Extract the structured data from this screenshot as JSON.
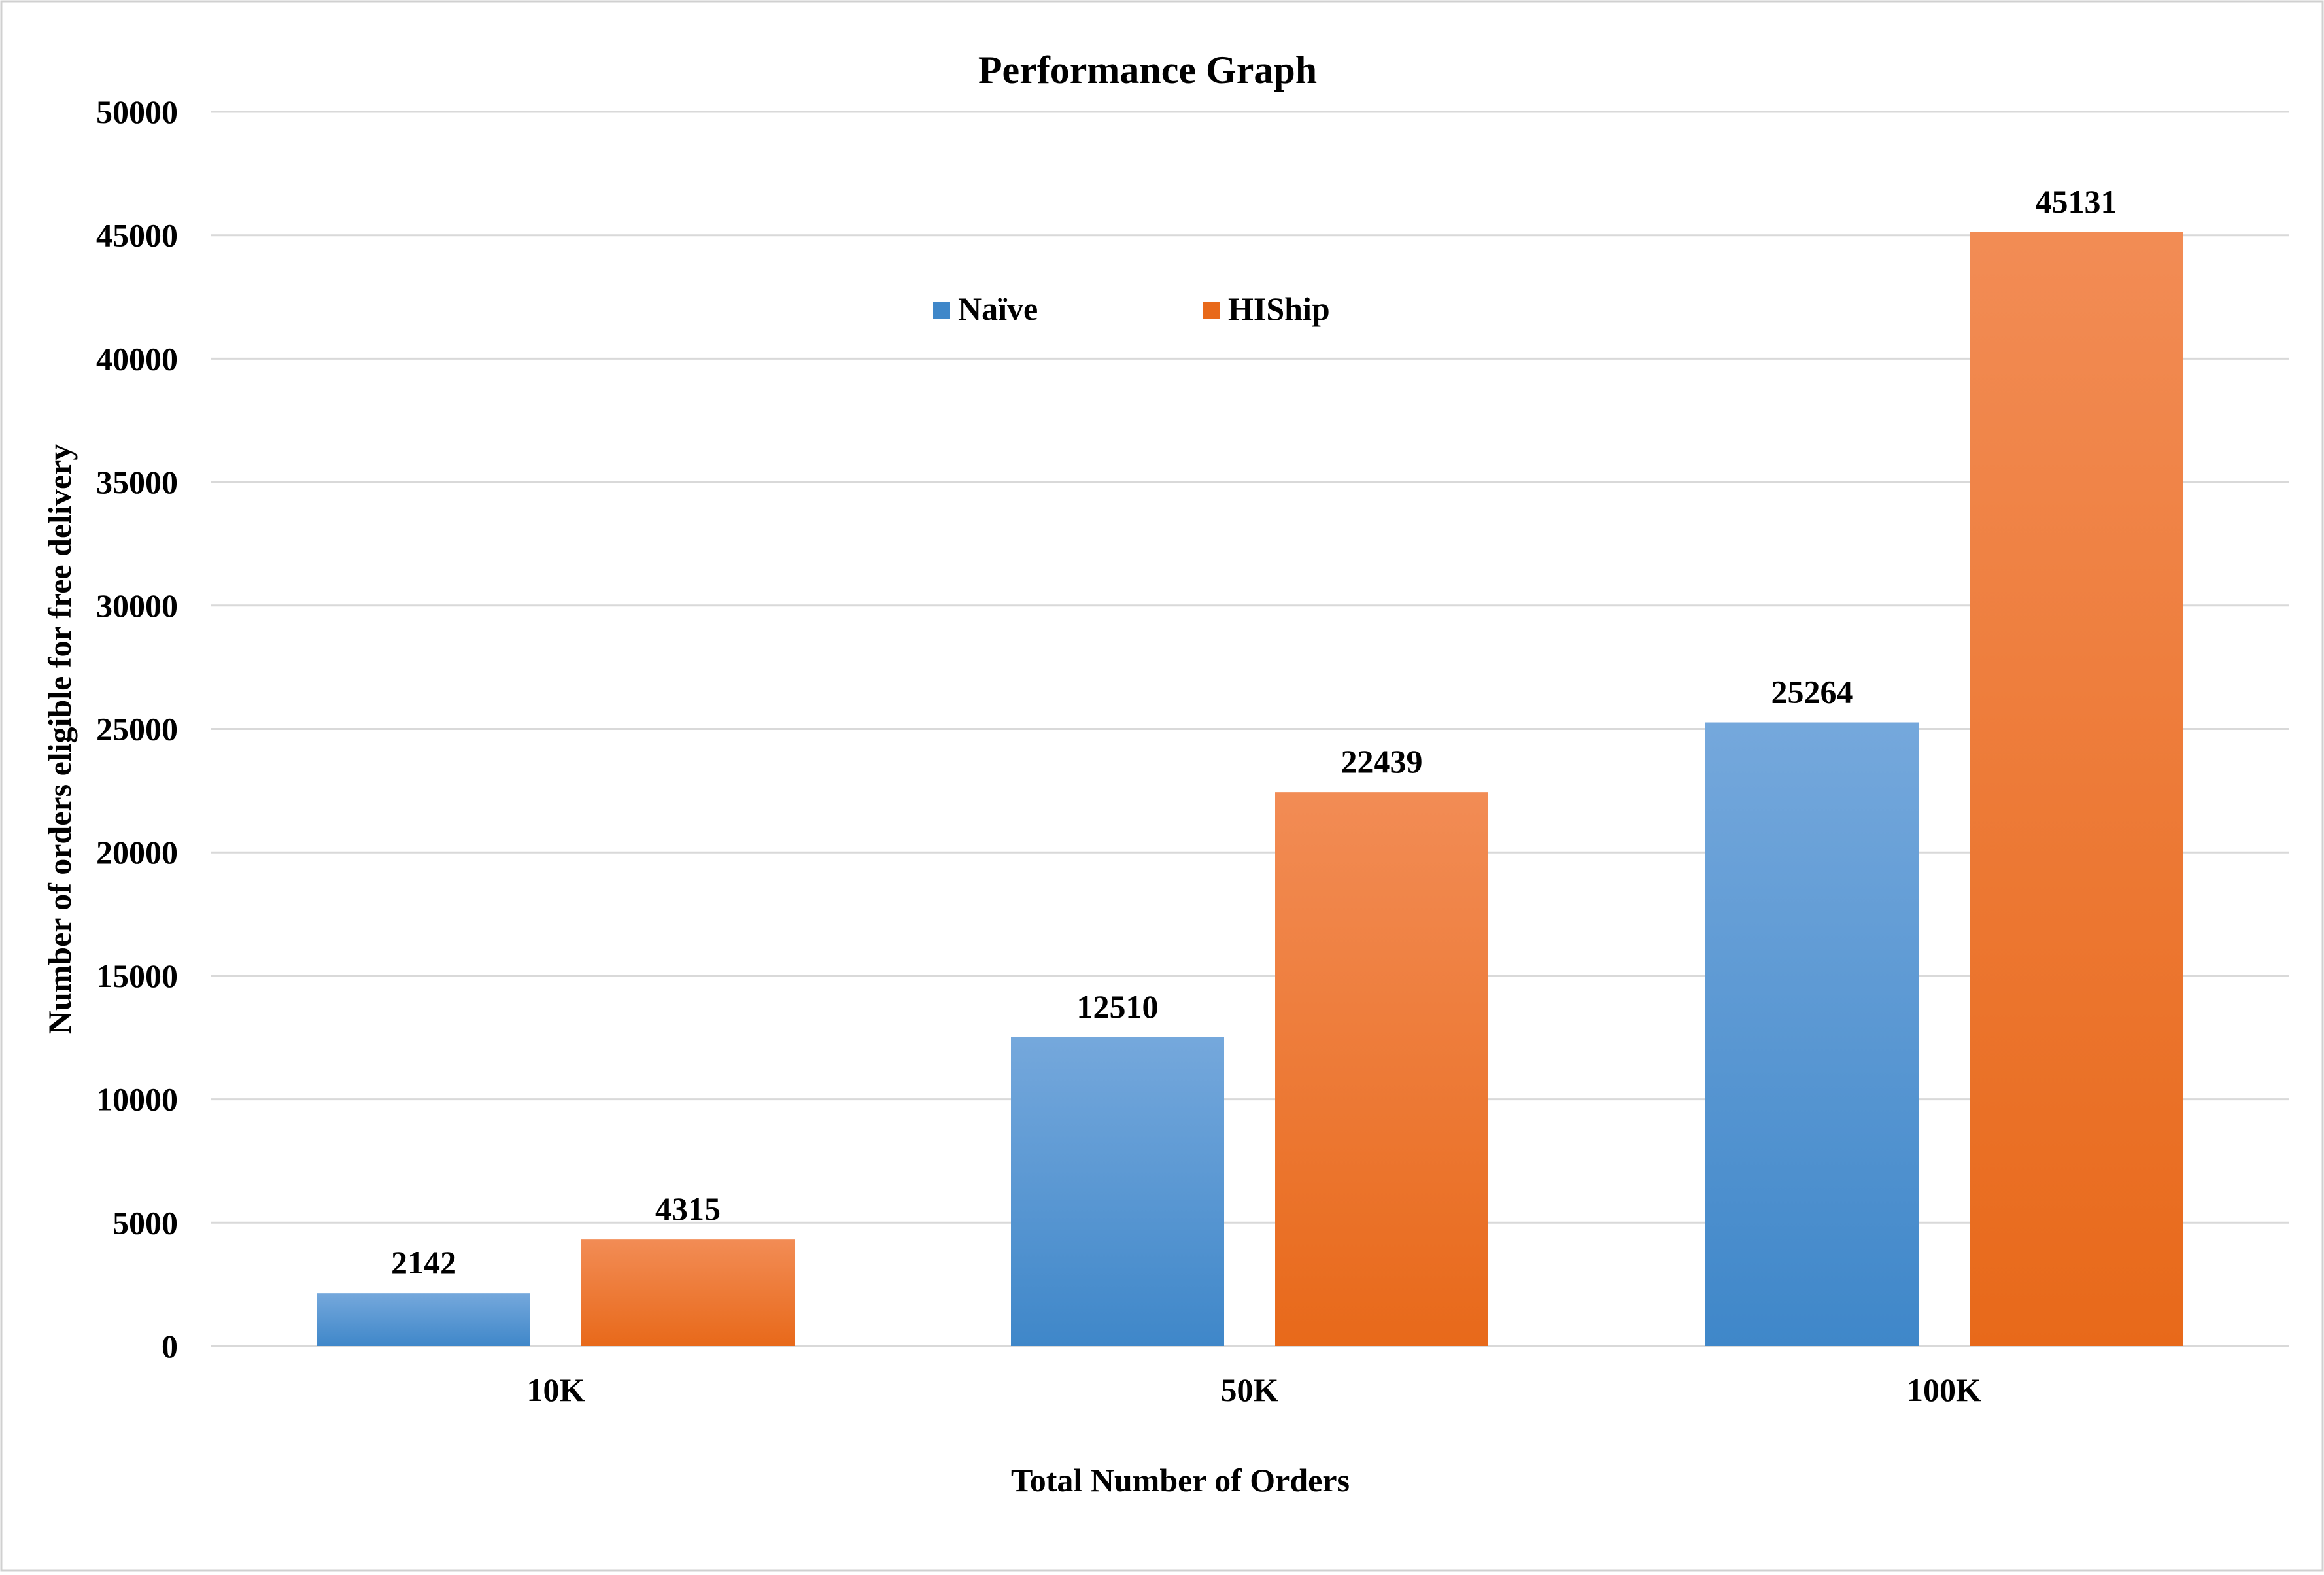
{
  "colors": {
    "naive_top": "#75a8dc",
    "naive_bottom": "#3f87c9",
    "hiship_top": "#f28c55",
    "hiship_bottom": "#e8691a",
    "grid": "#d9d9d9",
    "frame": "#d0d0d0"
  },
  "chart_data": {
    "type": "bar",
    "title": "Performance Graph",
    "xlabel": "Total Number of Orders",
    "ylabel": "Number of orders eligible for free delivery",
    "categories": [
      "10K",
      "50K",
      "100K"
    ],
    "series": [
      {
        "name": "Naïve",
        "values": [
          2142,
          12510,
          25264
        ]
      },
      {
        "name": "HIShip",
        "values": [
          4315,
          22439,
          45131
        ]
      }
    ],
    "data_labels": [
      [
        "2142",
        "12510",
        "25264"
      ],
      [
        "4315",
        "22439",
        "45131"
      ]
    ],
    "ylim": [
      0,
      50000
    ],
    "yticks": [
      0,
      5000,
      10000,
      15000,
      20000,
      25000,
      30000,
      35000,
      40000,
      45000,
      50000
    ],
    "ytick_labels": [
      "0",
      "5000",
      "10000",
      "15000",
      "20000",
      "25000",
      "30000",
      "35000",
      "40000",
      "45000",
      "50000"
    ],
    "grid": true,
    "legend_position": "top-center"
  }
}
